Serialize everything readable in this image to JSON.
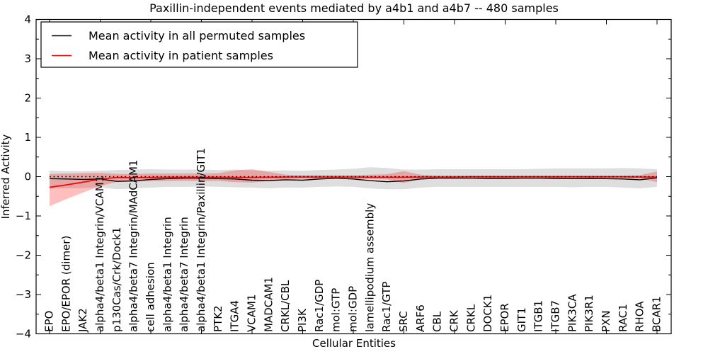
{
  "chart_data": {
    "type": "line",
    "title": "Paxillin-independent events mediated by a4b1 and a4b7 -- 480 samples",
    "xlabel": "Cellular Entities",
    "ylabel": "Inferred Activity",
    "ylim": [
      -4,
      4
    ],
    "yticks": [
      -4,
      -3,
      -2,
      -1,
      0,
      1,
      2,
      3,
      4
    ],
    "y_minor_step": 0.5,
    "x_major_tick_every": 3,
    "grid": false,
    "legend_position": "upper-left",
    "zero_reference_line": {
      "value": 0,
      "style": "dotted",
      "color": "#000000"
    },
    "categories": [
      "EPO",
      "EPO/EPOR (dimer)",
      "JAK2",
      "alpha4/beta1 Integrin/VCAM1",
      "p130Cas/Crk/Dock1",
      "alpha4/beta7 Integrin/MAdCAM1",
      "cell adhesion",
      "alpha4/beta1 Integrin",
      "alpha4/beta7 Integrin",
      "alpha4/beta1 Integrin/Paxillin/GIT1",
      "PTK2",
      "ITGA4",
      "VCAM1",
      "MADCAM1",
      "CRKL/CBL",
      "PI3K",
      "Rac1/GDP",
      "mol:GTP",
      "mol:GDP",
      "lamellipodium assembly",
      "Rac1/GTP",
      "SRC",
      "ARF6",
      "CBL",
      "CRK",
      "CRKL",
      "DOCK1",
      "EPOR",
      "GIT1",
      "ITGB1",
      "ITGB7",
      "PIK3CA",
      "PIK3R1",
      "PXN",
      "RAC1",
      "RHOA",
      "BCAR1"
    ],
    "series": [
      {
        "name": "Mean activity in all permuted samples",
        "color": "#000000",
        "band_color": "#000000",
        "band_opacity": 0.13,
        "values": [
          -0.05,
          -0.06,
          -0.07,
          -0.06,
          -0.12,
          -0.11,
          -0.07,
          -0.05,
          -0.04,
          -0.04,
          -0.05,
          -0.06,
          -0.09,
          -0.1,
          -0.08,
          -0.09,
          -0.06,
          -0.04,
          -0.06,
          -0.1,
          -0.13,
          -0.11,
          -0.06,
          -0.04,
          -0.04,
          -0.04,
          -0.045,
          -0.045,
          -0.04,
          -0.04,
          -0.045,
          -0.05,
          -0.045,
          -0.05,
          -0.06,
          -0.08,
          -0.03
        ],
        "band_upper": [
          0.15,
          0.14,
          0.14,
          0.15,
          0.17,
          0.18,
          0.19,
          0.18,
          0.18,
          0.18,
          0.17,
          0.18,
          0.16,
          0.15,
          0.16,
          0.15,
          0.17,
          0.18,
          0.2,
          0.24,
          0.22,
          0.18,
          0.18,
          0.19,
          0.19,
          0.19,
          0.19,
          0.19,
          0.19,
          0.2,
          0.21,
          0.21,
          0.21,
          0.21,
          0.22,
          0.21,
          0.19
        ],
        "band_lower": [
          -0.3,
          -0.3,
          -0.29,
          -0.27,
          -0.32,
          -0.3,
          -0.28,
          -0.26,
          -0.26,
          -0.25,
          -0.26,
          -0.27,
          -0.28,
          -0.3,
          -0.28,
          -0.28,
          -0.26,
          -0.25,
          -0.26,
          -0.3,
          -0.32,
          -0.32,
          -0.28,
          -0.26,
          -0.26,
          -0.26,
          -0.26,
          -0.26,
          -0.26,
          -0.26,
          -0.26,
          -0.27,
          -0.26,
          -0.26,
          -0.28,
          -0.3,
          -0.26
        ]
      },
      {
        "name": "Mean activity in patient samples",
        "color": "#ff0000",
        "band_color": "#ff0000",
        "band_opacity": 0.25,
        "values": [
          -0.27,
          -0.21,
          -0.14,
          -0.06,
          -0.02,
          -0.025,
          -0.02,
          -0.015,
          -0.015,
          -0.015,
          -0.015,
          -0.02,
          -0.02,
          -0.015,
          -0.01,
          -0.01,
          -0.01,
          -0.01,
          -0.01,
          -0.015,
          -0.015,
          -0.015,
          -0.01,
          -0.01,
          -0.01,
          -0.005,
          -0.005,
          -0.005,
          -0.005,
          -0.005,
          -0.005,
          -0.005,
          -0.005,
          -0.005,
          -0.005,
          -0.01,
          -0.01
        ],
        "band_upper": [
          0.07,
          0.08,
          0.09,
          0.1,
          0.07,
          0.07,
          0.08,
          0.08,
          0.08,
          0.08,
          0.09,
          0.16,
          0.19,
          0.12,
          0.05,
          0.04,
          0.04,
          0.04,
          0.04,
          0.05,
          0.06,
          0.14,
          0.05,
          0.03,
          0.03,
          0.03,
          0.03,
          0.03,
          0.03,
          0.03,
          0.03,
          0.03,
          0.03,
          0.03,
          0.03,
          0.04,
          0.13
        ],
        "band_lower": [
          -0.75,
          -0.57,
          -0.4,
          -0.24,
          -0.13,
          -0.12,
          -0.12,
          -0.11,
          -0.11,
          -0.11,
          -0.11,
          -0.14,
          -0.15,
          -0.11,
          -0.06,
          -0.05,
          -0.05,
          -0.05,
          -0.05,
          -0.06,
          -0.07,
          -0.16,
          -0.06,
          -0.04,
          -0.04,
          -0.04,
          -0.04,
          -0.04,
          -0.04,
          -0.04,
          -0.04,
          -0.04,
          -0.04,
          -0.04,
          -0.04,
          -0.05,
          -0.14
        ]
      }
    ]
  }
}
